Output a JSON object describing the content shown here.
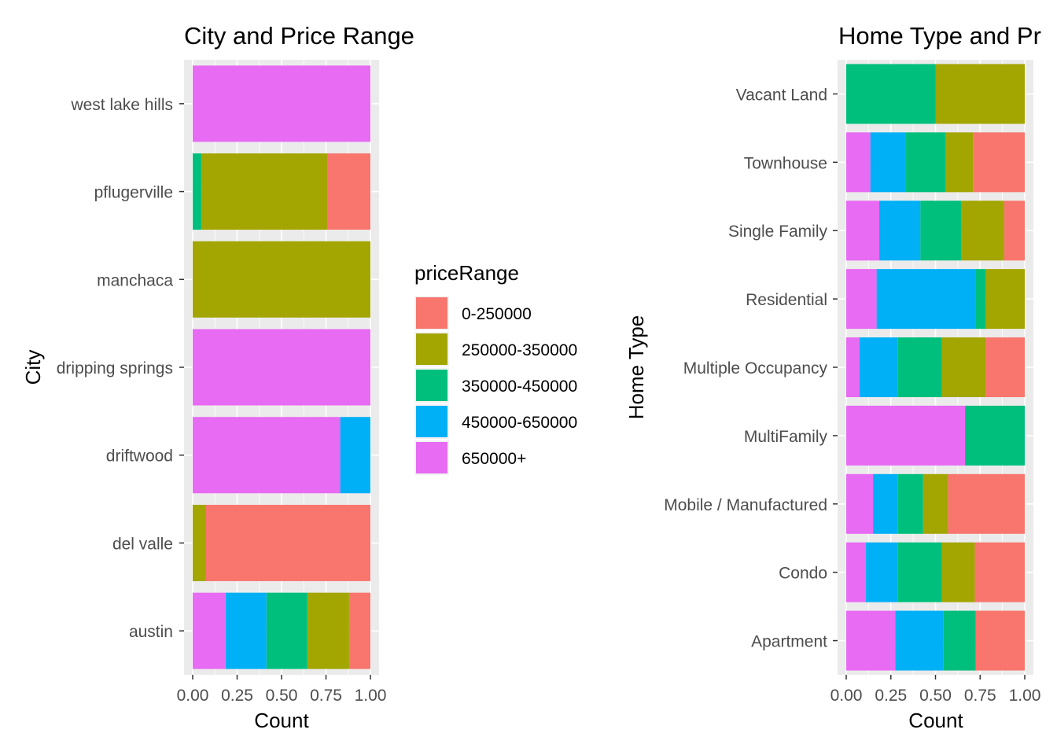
{
  "legend": {
    "title": "priceRange",
    "entries": [
      {
        "label": "0-250000",
        "color": "#F8766D"
      },
      {
        "label": "250000-350000",
        "color": "#A3A500"
      },
      {
        "label": "350000-450000",
        "color": "#00BF7D"
      },
      {
        "label": "450000-650000",
        "color": "#00B0F6"
      },
      {
        "label": "650000+",
        "color": "#E76BF3"
      }
    ]
  },
  "chart_data": [
    {
      "type": "bar",
      "orientation": "horizontal",
      "stacking": "fill",
      "title": "City and Price Range",
      "xlabel": "Count",
      "ylabel": "City",
      "xlim": [
        0,
        1
      ],
      "x_ticks": [
        "0.00",
        "0.25",
        "0.50",
        "0.75",
        "1.00"
      ],
      "grid": true,
      "legend_position": "right",
      "categories": [
        "austin",
        "del valle",
        "driftwood",
        "dripping springs",
        "manchaca",
        "pflugerville",
        "west lake hills"
      ],
      "series": [
        {
          "name": "0-250000",
          "values": [
            0.12,
            0.925,
            0,
            0,
            0,
            0.24,
            0
          ]
        },
        {
          "name": "250000-350000",
          "values": [
            0.235,
            0.075,
            0,
            0,
            1.0,
            0.71,
            0
          ]
        },
        {
          "name": "350000-450000",
          "values": [
            0.23,
            0,
            0,
            0,
            0,
            0.05,
            0
          ]
        },
        {
          "name": "450000-650000",
          "values": [
            0.23,
            0,
            0.17,
            0,
            0,
            0,
            0
          ]
        },
        {
          "name": "650000+",
          "values": [
            0.185,
            0,
            0.83,
            1.0,
            0,
            0,
            1.0
          ]
        }
      ]
    },
    {
      "type": "bar",
      "orientation": "horizontal",
      "stacking": "fill",
      "title": "Home Type and Pr",
      "xlabel": "Count",
      "ylabel": "Home Type",
      "xlim": [
        0,
        1
      ],
      "x_ticks": [
        "0.00",
        "0.25",
        "0.50",
        "0.75",
        "1.00"
      ],
      "grid": true,
      "categories": [
        "Apartment",
        "Condo",
        "Mobile / Manufactured",
        "MultiFamily",
        "Multiple Occupancy",
        "Residential",
        "Single Family",
        "Townhouse",
        "Vacant Land"
      ],
      "series": [
        {
          "name": "0-250000",
          "values": [
            0.275,
            0.28,
            0.43,
            0,
            0.22,
            0,
            0.115,
            0.29,
            0
          ]
        },
        {
          "name": "250000-350000",
          "values": [
            0,
            0.185,
            0.14,
            0,
            0.245,
            0.22,
            0.24,
            0.155,
            0.5
          ]
        },
        {
          "name": "350000-450000",
          "values": [
            0.18,
            0.245,
            0.14,
            0.335,
            0.245,
            0.055,
            0.23,
            0.22,
            0.5
          ]
        },
        {
          "name": "450000-650000",
          "values": [
            0.27,
            0.18,
            0.14,
            0,
            0.215,
            0.555,
            0.23,
            0.2,
            0
          ]
        },
        {
          "name": "650000+",
          "values": [
            0.275,
            0.11,
            0.15,
            0.665,
            0.075,
            0.17,
            0.185,
            0.135,
            0
          ]
        }
      ]
    }
  ]
}
